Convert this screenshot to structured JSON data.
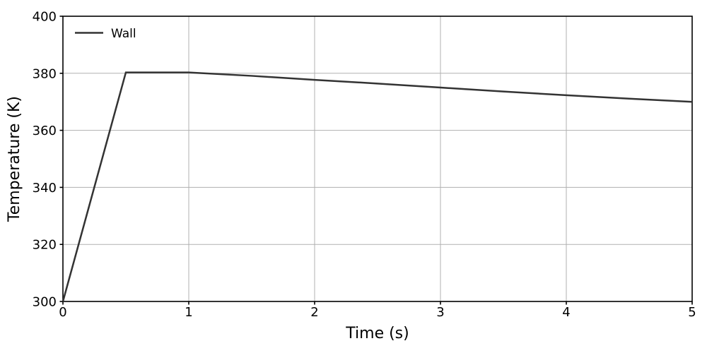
{
  "chart_data": {
    "type": "line",
    "title": "",
    "xlabel": "Time (s)",
    "ylabel": "Temperature (K)",
    "xlim": [
      0,
      5
    ],
    "ylim": [
      300,
      400
    ],
    "xticks": [
      0,
      1,
      2,
      3,
      4,
      5
    ],
    "yticks": [
      300,
      320,
      340,
      360,
      380,
      400
    ],
    "grid": true,
    "legend": {
      "position": "upper-left",
      "frame": false,
      "entries": [
        "Wall"
      ]
    },
    "series": [
      {
        "name": "Wall",
        "color": "#333333",
        "line_width": 2.5,
        "x": [
          0,
          0.5,
          1,
          1.5,
          2,
          2.5,
          3,
          3.5,
          4,
          4.5,
          5
        ],
        "y": [
          300,
          380.3,
          380.3,
          379.1,
          377.7,
          376.4,
          375.0,
          373.6,
          372.3,
          371.1,
          370.0
        ]
      }
    ],
    "colors": {
      "grid": "#b0b0b0",
      "spine": "#000000",
      "tick": "#000000",
      "text": "#000000",
      "background": "#ffffff"
    }
  }
}
